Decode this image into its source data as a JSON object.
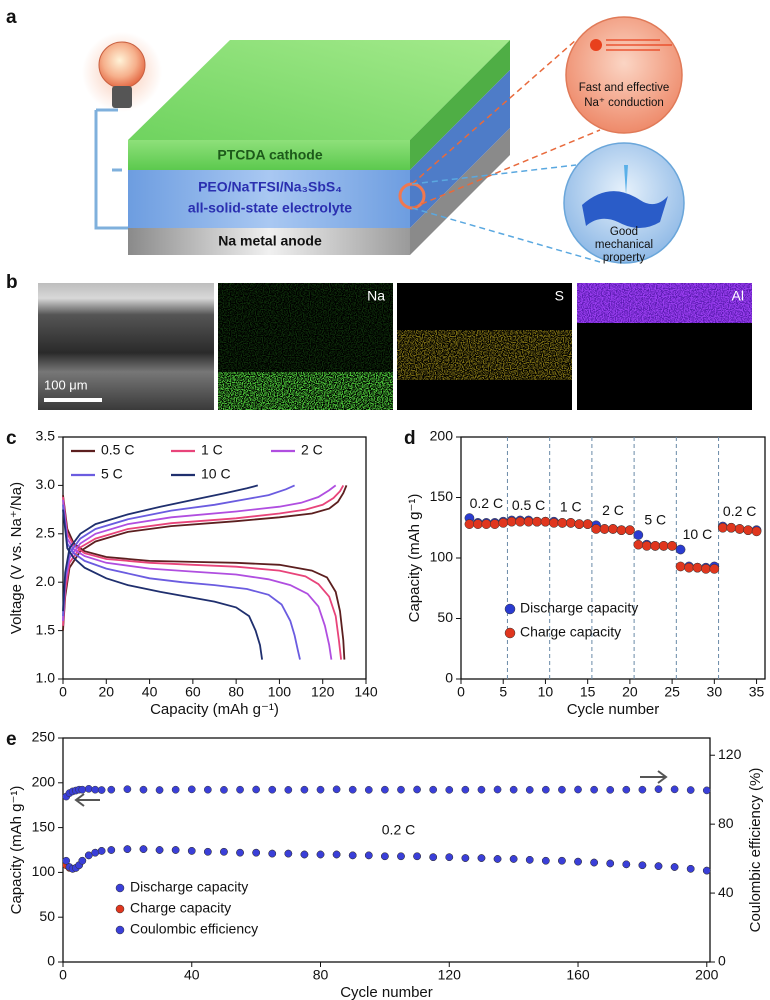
{
  "panel_a": {
    "panel_label": "a",
    "cathode": "PTCDA cathode",
    "electrolyte_line1": "PEO/NaTFSI/Na₃SbS₄",
    "electrolyte_line2": "all-solid-state electrolyte",
    "anode": "Na metal anode",
    "callout1_line1": "Fast and effective",
    "callout1_line2": "Na⁺ conduction",
    "callout2_line1": "Good",
    "callout2_line2": "mechanical",
    "callout2_line3": "property"
  },
  "panel_b": {
    "panel_label": "b",
    "scale_bar": "100 μm",
    "maps": [
      "Na",
      "S",
      "Al"
    ]
  },
  "chart_data": [
    {
      "type": "line",
      "panel_label": "c",
      "x_label": "Capacity (mAh g⁻¹)",
      "y_label": "Voltage (V vs. Na⁺/Na)",
      "xlim": [
        0,
        140
      ],
      "xticks": [
        0,
        20,
        40,
        60,
        80,
        100,
        120,
        140
      ],
      "ylim": [
        1.0,
        3.5
      ],
      "yticks": [
        {
          "value": 1,
          "label": "1.0"
        },
        1.5,
        {
          "value": 2,
          "label": "2.0"
        },
        2.5,
        {
          "value": 3,
          "label": "3.0"
        },
        3.5
      ],
      "series": [
        {
          "name": "0.5 C",
          "color": "#5c1f1f",
          "discharge_x": [
            0,
            2,
            5,
            10,
            20,
            40,
            60,
            80,
            100,
            115,
            122,
            126,
            128,
            129.5,
            130
          ],
          "discharge_values": [
            2.9,
            2.55,
            2.4,
            2.32,
            2.26,
            2.22,
            2.21,
            2.2,
            2.18,
            2.12,
            2.05,
            1.9,
            1.7,
            1.4,
            1.2
          ],
          "charge_x": [
            0,
            1,
            3,
            8,
            15,
            30,
            50,
            80,
            100,
            115,
            123,
            127,
            129.5,
            131
          ],
          "charge_values": [
            1.5,
            1.85,
            2.15,
            2.32,
            2.42,
            2.52,
            2.58,
            2.63,
            2.67,
            2.71,
            2.76,
            2.83,
            2.92,
            3.0
          ]
        },
        {
          "name": "1 C",
          "color": "#e8447a",
          "discharge_x": [
            0,
            2,
            5,
            10,
            20,
            40,
            60,
            80,
            100,
            112,
            118,
            123,
            126,
            127.5,
            128.5
          ],
          "discharge_values": [
            2.88,
            2.5,
            2.38,
            2.3,
            2.24,
            2.2,
            2.18,
            2.16,
            2.12,
            2.06,
            1.98,
            1.85,
            1.65,
            1.4,
            1.2
          ],
          "charge_x": [
            0,
            1,
            3,
            8,
            15,
            30,
            50,
            80,
            100,
            112,
            120,
            125,
            128,
            129.5
          ],
          "charge_values": [
            1.55,
            1.9,
            2.2,
            2.36,
            2.45,
            2.55,
            2.61,
            2.66,
            2.71,
            2.75,
            2.8,
            2.87,
            2.94,
            3.0
          ]
        },
        {
          "name": "2 C",
          "color": "#b04ee0",
          "discharge_x": [
            0,
            2,
            5,
            10,
            20,
            40,
            60,
            80,
            95,
            105,
            113,
            118,
            121,
            123,
            124
          ],
          "discharge_values": [
            2.85,
            2.45,
            2.34,
            2.27,
            2.2,
            2.14,
            2.11,
            2.08,
            2.03,
            1.97,
            1.88,
            1.75,
            1.55,
            1.35,
            1.2
          ],
          "charge_x": [
            0,
            1,
            3,
            8,
            15,
            30,
            50,
            80,
            100,
            110,
            118,
            123,
            126
          ],
          "charge_values": [
            1.6,
            2.0,
            2.25,
            2.4,
            2.5,
            2.6,
            2.67,
            2.73,
            2.78,
            2.82,
            2.88,
            2.95,
            3.0
          ]
        },
        {
          "name": "5 C",
          "color": "#6b5ce0",
          "discharge_x": [
            0,
            2,
            5,
            10,
            20,
            40,
            55,
            70,
            85,
            95,
            101,
            105,
            107,
            108.5,
            109.5
          ],
          "discharge_values": [
            2.8,
            2.4,
            2.3,
            2.22,
            2.14,
            2.04,
            2.0,
            1.97,
            1.93,
            1.87,
            1.77,
            1.6,
            1.45,
            1.3,
            1.2
          ],
          "charge_x": [
            0,
            1,
            3,
            8,
            15,
            30,
            50,
            70,
            85,
            95,
            103,
            107
          ],
          "charge_values": [
            1.65,
            2.05,
            2.3,
            2.45,
            2.55,
            2.65,
            2.74,
            2.8,
            2.86,
            2.9,
            2.96,
            3.0
          ]
        },
        {
          "name": "10 C",
          "color": "#1f2f6e",
          "discharge_x": [
            0,
            2,
            5,
            10,
            20,
            30,
            45,
            60,
            70,
            80,
            86,
            89,
            91,
            92
          ],
          "discharge_values": [
            2.75,
            2.35,
            2.25,
            2.15,
            2.04,
            1.97,
            1.9,
            1.84,
            1.8,
            1.74,
            1.65,
            1.5,
            1.35,
            1.2
          ],
          "charge_x": [
            0,
            1,
            3,
            8,
            15,
            30,
            45,
            60,
            75,
            85,
            90
          ],
          "charge_values": [
            1.7,
            2.1,
            2.35,
            2.5,
            2.6,
            2.7,
            2.78,
            2.85,
            2.92,
            2.97,
            3.0
          ]
        }
      ]
    },
    {
      "type": "scatter",
      "panel_label": "d",
      "x_label": "Cycle number",
      "y_label": "Capacity (mAh g⁻¹)",
      "xlim": [
        0,
        36
      ],
      "xticks": [
        0,
        5,
        10,
        15,
        20,
        25,
        30,
        35
      ],
      "ylim": [
        0,
        200
      ],
      "yticks": [
        0,
        50,
        100,
        150,
        200
      ],
      "rate_labels": [
        "0.2 C",
        "0.5 C",
        "1 C",
        "2 C",
        "5 C",
        "10 C",
        "0.2 C"
      ],
      "x": [
        1,
        2,
        3,
        4,
        5,
        6,
        7,
        8,
        9,
        10,
        11,
        12,
        13,
        14,
        15,
        16,
        17,
        18,
        19,
        20,
        21,
        22,
        23,
        24,
        25,
        26,
        27,
        28,
        29,
        30,
        31,
        32,
        33,
        34,
        35
      ],
      "series": [
        {
          "name": "Discharge capacity",
          "color": "#2a3bd0",
          "values": [
            133,
            129,
            129,
            129,
            130,
            131,
            131,
            131,
            130,
            130,
            130,
            129,
            129,
            128,
            128,
            127,
            124,
            124,
            123,
            123,
            119,
            111,
            110,
            110,
            110,
            107,
            93,
            92,
            92,
            93,
            126,
            125,
            124,
            123,
            123
          ]
        },
        {
          "name": "Charge capacity",
          "color": "#e0361e",
          "values": [
            128,
            128,
            128,
            128,
            129,
            130,
            130,
            130,
            130,
            130,
            129,
            129,
            129,
            128,
            128,
            124,
            124,
            124,
            123,
            123,
            111,
            110,
            110,
            110,
            110,
            93,
            92,
            92,
            91,
            91,
            125,
            125,
            124,
            123,
            122
          ]
        }
      ]
    },
    {
      "type": "scatter",
      "panel_label": "e",
      "x_label": "Cycle number",
      "y_label": "Capacity (mAh g⁻¹)",
      "y2_label": "Coulombic efficiency (%)",
      "annotations": [
        "0.2 C"
      ],
      "xlim": [
        0,
        201
      ],
      "xticks": [
        0,
        40,
        80,
        120,
        160,
        200
      ],
      "ylim": [
        0,
        250
      ],
      "yticks": [
        0,
        50,
        100,
        150,
        200,
        250
      ],
      "y2lim": [
        0,
        130
      ],
      "y2ticks": [
        0,
        40,
        80,
        120
      ],
      "x": [
        1,
        2,
        3,
        4,
        5,
        6,
        8,
        10,
        12,
        15,
        20,
        25,
        30,
        35,
        40,
        45,
        50,
        55,
        60,
        65,
        70,
        75,
        80,
        85,
        90,
        95,
        100,
        105,
        110,
        115,
        120,
        125,
        130,
        135,
        140,
        145,
        150,
        155,
        160,
        165,
        170,
        175,
        180,
        185,
        190,
        195,
        200
      ],
      "series": [
        {
          "name": "Discharge capacity",
          "color": "#3a3fd8",
          "values": [
            113,
            106,
            104,
            105,
            108,
            113,
            119,
            122,
            124,
            125,
            126,
            126,
            125,
            125,
            124,
            123,
            123,
            122,
            122,
            121,
            121,
            120,
            120,
            120,
            119,
            119,
            118,
            118,
            118,
            117,
            117,
            116,
            116,
            115,
            115,
            114,
            113,
            113,
            112,
            111,
            110,
            109,
            108,
            107,
            106,
            104,
            102
          ]
        },
        {
          "name": "Charge capacity",
          "color": "#e0361e",
          "values": [
            108,
            105,
            104,
            105,
            108,
            113,
            119,
            122,
            124,
            125,
            126,
            126,
            125,
            125,
            124,
            123,
            123,
            122,
            122,
            121,
            121,
            120,
            120,
            120,
            119,
            119,
            118,
            118,
            118,
            117,
            117,
            116,
            116,
            115,
            115,
            114,
            113,
            113,
            112,
            111,
            110,
            109,
            108,
            107,
            106,
            104,
            102
          ]
        },
        {
          "name": "Coulombic efficiency",
          "color": "#3a3fd8",
          "axis": "y2",
          "values": [
            96,
            98,
            99,
            99.5,
            100,
            100,
            100.5,
            100,
            99.8,
            100,
            100.3,
            100,
            99.8,
            100,
            100.2,
            100,
            99.9,
            100,
            100.1,
            100,
            99.9,
            100,
            100,
            100.2,
            100,
            99.9,
            100,
            100,
            100.1,
            100,
            99.9,
            100,
            100,
            100.1,
            100,
            99.9,
            100,
            100,
            100.1,
            100,
            99.9,
            100,
            100,
            100.3,
            100.2,
            99.8,
            99.6
          ]
        }
      ]
    }
  ]
}
